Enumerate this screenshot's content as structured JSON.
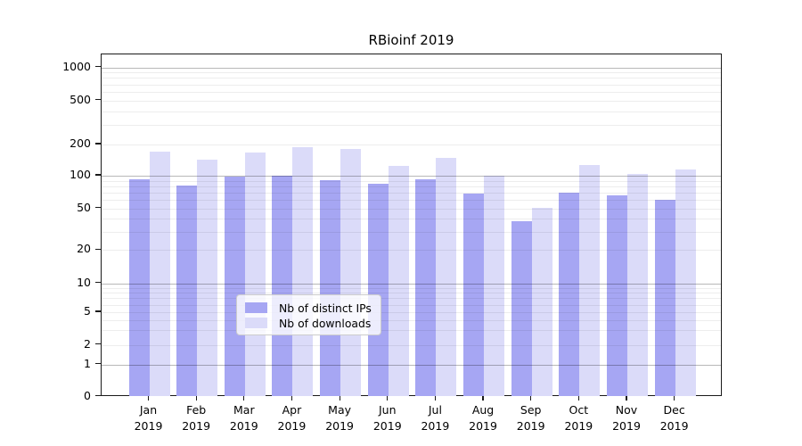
{
  "chart_data": {
    "type": "bar",
    "title": "RBioinf 2019",
    "categories": [
      "Jan",
      "Feb",
      "Mar",
      "Apr",
      "May",
      "Jun",
      "Jul",
      "Aug",
      "Sep",
      "Oct",
      "Nov",
      "Dec"
    ],
    "x_year_label": "2019",
    "series": [
      {
        "name": "Nb of distinct IPs",
        "color": "#a6a6f3",
        "values": [
          92,
          82,
          98,
          100,
          91,
          85,
          93,
          68,
          38,
          70,
          66,
          60
        ]
      },
      {
        "name": "Nb of downloads",
        "color": "#dbdbf9",
        "values": [
          171,
          143,
          168,
          188,
          180,
          125,
          150,
          100,
          51,
          128,
          104,
          116
        ]
      }
    ],
    "y_ticks": [
      0,
      1,
      2,
      5,
      10,
      20,
      50,
      100,
      200,
      500,
      1000
    ],
    "y_scale": "symlog",
    "ylim": [
      0,
      1000
    ],
    "grid": "horizontal, log major+minor",
    "legend_position": "bottom-center",
    "colors": {
      "major_gridline": "rgba(0,0,0,0.28)",
      "minor_gridline": "rgba(0,0,0,0.07)",
      "axis": "#1a1a1a",
      "background": "#ffffff"
    }
  }
}
